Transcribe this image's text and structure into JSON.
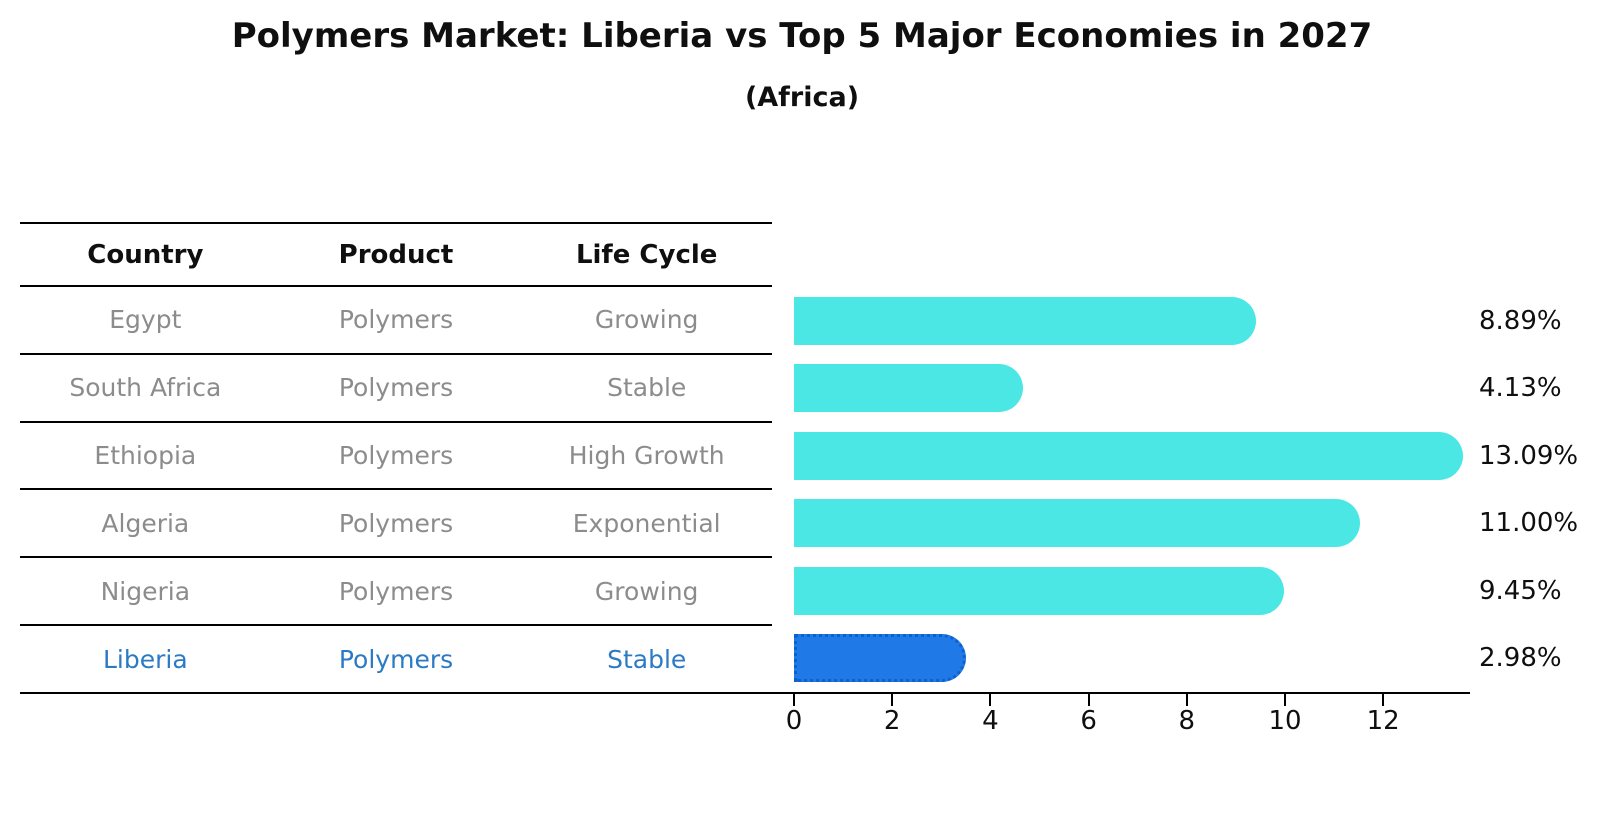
{
  "header": {
    "title": "Polymers Market: Liberia vs Top 5 Major Economies in 2027",
    "subtitle": "(Africa)"
  },
  "table": {
    "headers": [
      "Country",
      "Product",
      "Life Cycle"
    ],
    "rows": [
      {
        "country": "Egypt",
        "product": "Polymers",
        "life_cycle": "Growing",
        "highlight": false
      },
      {
        "country": "South Africa",
        "product": "Polymers",
        "life_cycle": "Stable",
        "highlight": false
      },
      {
        "country": "Ethiopia",
        "product": "Polymers",
        "life_cycle": "High Growth",
        "highlight": false
      },
      {
        "country": "Algeria",
        "product": "Polymers",
        "life_cycle": "Exponential",
        "highlight": false
      },
      {
        "country": "Nigeria",
        "product": "Polymers",
        "life_cycle": "Growing",
        "highlight": false
      },
      {
        "country": "Liberia",
        "product": "Polymers",
        "life_cycle": "Stable",
        "highlight": true
      }
    ]
  },
  "chart_data": {
    "type": "bar",
    "orientation": "horizontal",
    "title": "Polymers Market: Liberia vs Top 5 Major Economies in 2027",
    "subtitle": "(Africa)",
    "categories": [
      "Egypt",
      "South Africa",
      "Ethiopia",
      "Algeria",
      "Nigeria",
      "Liberia"
    ],
    "values": [
      8.89,
      4.13,
      13.09,
      11.0,
      9.45,
      2.98
    ],
    "value_labels": [
      "8.89%",
      "4.13%",
      "13.09%",
      "11.00%",
      "9.45%",
      "2.98%"
    ],
    "highlight_index": 5,
    "xticks": [
      0,
      2,
      4,
      6,
      8,
      10,
      12
    ],
    "xlim": [
      0,
      13.75
    ],
    "grid": false,
    "legend": false,
    "bar_color": "#4BE7E4",
    "highlight_bar_color": "#1F7AE8"
  },
  "colors": {
    "bar_cyan": "#4BE7E4",
    "bar_blue": "#1F7AE8",
    "highlight_text": "#2B7AC4",
    "muted_text": "#8C8C8C",
    "axis_black": "#000000"
  }
}
